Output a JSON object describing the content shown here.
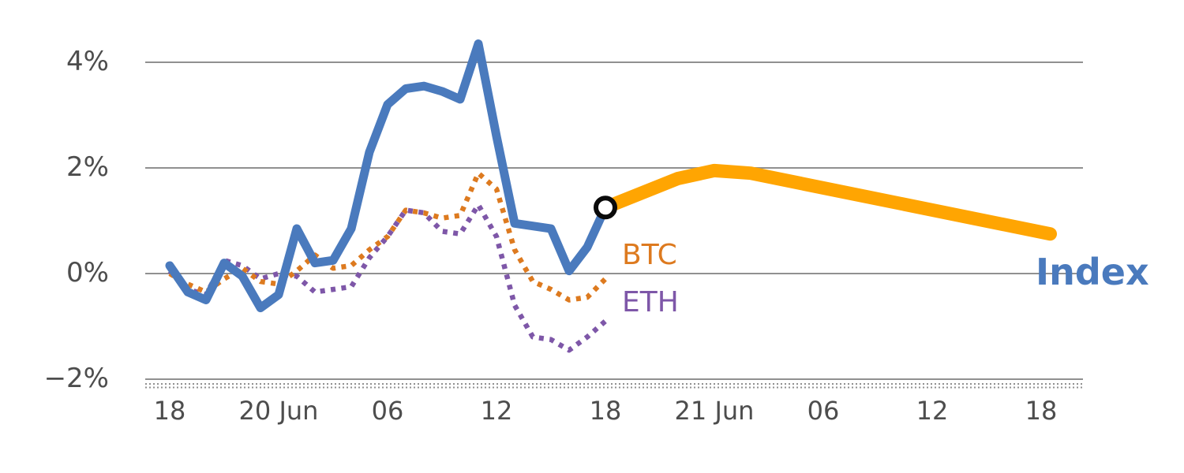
{
  "chart_data": {
    "type": "line",
    "title": "",
    "grid": true,
    "x_axis": {
      "unit": "hours",
      "tick_labels": [
        "18",
        "20 Jun",
        "06",
        "12",
        "18",
        "21 Jun",
        "06",
        "12",
        "18"
      ],
      "tick_hours": [
        0,
        6,
        12,
        18,
        24,
        30,
        36,
        42,
        48
      ]
    },
    "y_axis": {
      "tick_labels": [
        "4%",
        "2%",
        "0%",
        "−2%"
      ],
      "tick_values": [
        4,
        2,
        0,
        -2
      ],
      "ylim": [
        -2.3,
        4.8
      ]
    },
    "series": [
      {
        "name": "ETH",
        "color": "#7e57a8",
        "style": "dotted",
        "width": 6.5,
        "x_start": 0,
        "values": [
          0.05,
          -0.3,
          -0.4,
          0.25,
          0.15,
          -0.1,
          0.0,
          -0.05,
          -0.35,
          -0.3,
          -0.25,
          0.3,
          0.7,
          1.2,
          1.15,
          0.8,
          0.75,
          1.3,
          0.7,
          -0.6,
          -1.2,
          -1.25,
          -1.45,
          -1.2,
          -0.9
        ]
      },
      {
        "name": "BTC",
        "color": "#dd7a1f",
        "style": "dotted",
        "width": 6.5,
        "x_start": 0,
        "values": [
          0.0,
          -0.2,
          -0.35,
          -0.1,
          0.1,
          -0.15,
          -0.2,
          0.05,
          0.35,
          0.1,
          0.15,
          0.45,
          0.7,
          1.2,
          1.15,
          1.05,
          1.1,
          1.9,
          1.6,
          0.45,
          -0.15,
          -0.3,
          -0.5,
          -0.45,
          -0.1
        ]
      },
      {
        "name": "Index",
        "color": "#4a7abd",
        "style": "solid",
        "width": 11,
        "x_start": 0,
        "values": [
          0.15,
          -0.35,
          -0.5,
          0.2,
          -0.05,
          -0.65,
          -0.4,
          0.85,
          0.2,
          0.25,
          0.85,
          2.3,
          3.2,
          3.5,
          3.55,
          3.45,
          3.3,
          4.35,
          2.6,
          0.95,
          0.9,
          0.85,
          0.05,
          0.5,
          1.25
        ]
      },
      {
        "name": "Index forecast",
        "color": "#ffa502",
        "style": "solid",
        "width": 17,
        "x_hours": [
          24,
          28,
          30,
          32,
          48.5
        ],
        "values": [
          1.25,
          1.8,
          1.95,
          1.9,
          0.75
        ]
      }
    ],
    "marker": {
      "x_hour": 24,
      "value": 1.25,
      "radius": 12,
      "fill": "#ffffff",
      "stroke": "#0a0a0a",
      "stroke_width": 6
    },
    "labels": {
      "btc": "BTC",
      "eth": "ETH",
      "index": "Index"
    },
    "colors": {
      "grid": "#909090",
      "tick_text": "#4d4d4d"
    }
  }
}
